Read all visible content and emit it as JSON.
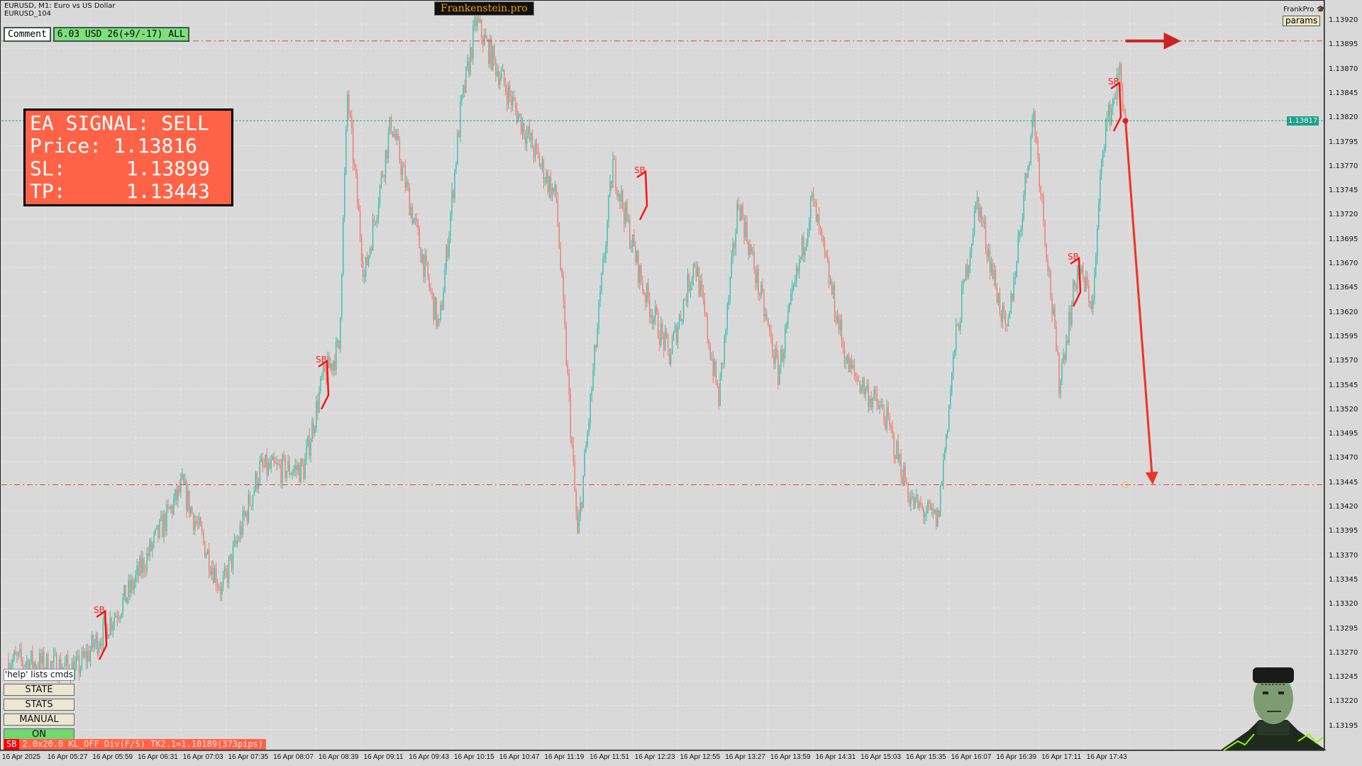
{
  "header": {
    "symbol_line": "EURUSD, M1:  Euro vs US Dollar",
    "template": "EURUSD_104",
    "brand": "Frankenstein.pro",
    "user": "FrankPro",
    "user_icon": "graduation-cap-icon",
    "params_label": "params"
  },
  "comment": {
    "label": "Comment",
    "value": "6.03 USD 26(+9/-17) ALL"
  },
  "signal": {
    "title": "EA SIGNAL: SELL",
    "price_label": "Price:",
    "price": "1.13816",
    "sl_label": "SL:",
    "sl": "1.13899",
    "tp_label": "TP:",
    "tp": "1.13443"
  },
  "panel": {
    "help": "'help' lists cmds",
    "state": "STATE",
    "stats": "STATS",
    "manual": "MANUAL",
    "on": "ON"
  },
  "status": {
    "badge": "SB",
    "text": "2.0x20.0 KL_OFF Div(F/S) TK2.1=1.10189(373pips)"
  },
  "current_price": "1.13817",
  "colors": {
    "bull": "#3cbfa6",
    "bear": "#f07b72",
    "sl_tp_line": "#e04040",
    "price_line": "#1fa08a",
    "signal_bg": "#ff6347",
    "arrow": "#ee3322"
  },
  "chart_data": {
    "type": "candlestick",
    "timeframe": "M1",
    "y_ticks": [
      "1.13920",
      "1.13895",
      "1.13870",
      "1.13845",
      "1.13820",
      "1.13795",
      "1.13770",
      "1.13745",
      "1.13720",
      "1.13695",
      "1.13670",
      "1.13645",
      "1.13620",
      "1.13595",
      "1.13570",
      "1.13545",
      "1.13520",
      "1.13495",
      "1.13470",
      "1.13445",
      "1.13420",
      "1.13395",
      "1.13370",
      "1.13345",
      "1.13320",
      "1.13295",
      "1.13270",
      "1.13245",
      "1.13220",
      "1.13195"
    ],
    "x_ticks": [
      "16 Apr 2025",
      "16 Apr 05:27",
      "16 Apr 05:59",
      "16 Apr 06:31",
      "16 Apr 07:03",
      "16 Apr 07:35",
      "16 Apr 08:07",
      "16 Apr 08:39",
      "16 Apr 09:11",
      "16 Apr 09:43",
      "16 Apr 10:15",
      "16 Apr 10:47",
      "16 Apr 11:19",
      "16 Apr 11:51",
      "16 Apr 12:23",
      "16 Apr 12:55",
      "16 Apr 13:27",
      "16 Apr 13:59",
      "16 Apr 14:31",
      "16 Apr 15:03",
      "16 Apr 15:35",
      "16 Apr 16:07",
      "16 Apr 16:39",
      "16 Apr 17:11",
      "16 Apr 17:43"
    ],
    "price_path": [
      [
        "04:55",
        1.13263
      ],
      [
        "05:44",
        1.13254
      ],
      [
        "06:09",
        1.13307
      ],
      [
        "06:21",
        1.13334
      ],
      [
        "06:58",
        1.13441
      ],
      [
        "07:26",
        1.13334
      ],
      [
        "07:53",
        1.13459
      ],
      [
        "08:24",
        1.13459
      ],
      [
        "08:37",
        1.13549
      ],
      [
        "08:49",
        1.13584
      ],
      [
        "08:55",
        1.13843
      ],
      [
        "09:07",
        1.13656
      ],
      [
        "09:26",
        1.13816
      ],
      [
        "10:00",
        1.13602
      ],
      [
        "10:15",
        1.13825
      ],
      [
        "10:26",
        1.13919
      ],
      [
        "10:58",
        1.13816
      ],
      [
        "11:23",
        1.13736
      ],
      [
        "11:38",
        1.13388
      ],
      [
        "12:03",
        1.13772
      ],
      [
        "12:24",
        1.13647
      ],
      [
        "12:43",
        1.13575
      ],
      [
        "13:01",
        1.13674
      ],
      [
        "13:18",
        1.13531
      ],
      [
        "13:32",
        1.13736
      ],
      [
        "14:00",
        1.13558
      ],
      [
        "14:24",
        1.13736
      ],
      [
        "14:49",
        1.13566
      ],
      [
        "15:16",
        1.13513
      ],
      [
        "15:35",
        1.13424
      ],
      [
        "15:53",
        1.13406
      ],
      [
        "16:05",
        1.13584
      ],
      [
        "16:21",
        1.13736
      ],
      [
        "16:42",
        1.13593
      ],
      [
        "17:01",
        1.13825
      ],
      [
        "17:19",
        1.13549
      ],
      [
        "17:32",
        1.13665
      ],
      [
        "17:43",
        1.13629
      ],
      [
        "17:50",
        1.13798
      ],
      [
        "18:02",
        1.13866
      ],
      [
        "18:06",
        1.13816
      ]
    ],
    "levels": {
      "stop_loss": 1.13899,
      "entry": 1.13817,
      "take_profit": 1.13443
    },
    "signal_marker_label": "SB",
    "grid": true
  }
}
